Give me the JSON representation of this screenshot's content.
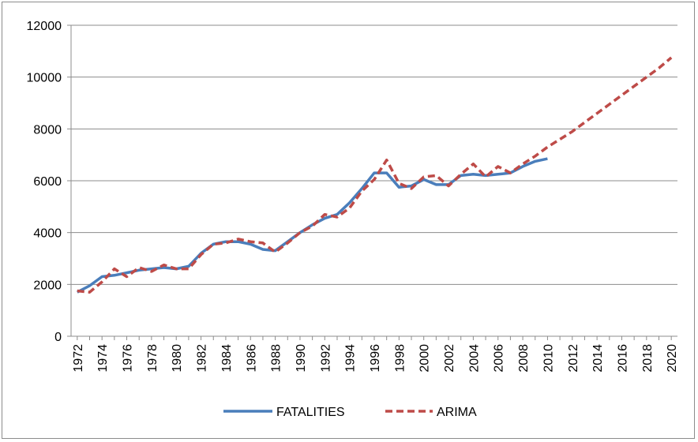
{
  "chart_data": {
    "type": "line",
    "title": "",
    "xlabel": "",
    "ylabel": "",
    "ylim": [
      0,
      12000
    ],
    "xlim": [
      1972,
      2020
    ],
    "yticks": [
      0,
      2000,
      4000,
      6000,
      8000,
      10000,
      12000
    ],
    "xticks": [
      1972,
      1974,
      1976,
      1978,
      1980,
      1982,
      1984,
      1986,
      1988,
      1990,
      1992,
      1994,
      1996,
      1998,
      2000,
      2002,
      2004,
      2006,
      2008,
      2010,
      2012,
      2014,
      2016,
      2018,
      2020
    ],
    "grid": "horizontal",
    "legend_position": "bottom",
    "series": [
      {
        "name": "FATALITIES",
        "color": "#4a7ebb",
        "style": "solid",
        "x": [
          1972,
          1973,
          1974,
          1975,
          1976,
          1977,
          1978,
          1979,
          1980,
          1981,
          1982,
          1983,
          1984,
          1985,
          1986,
          1987,
          1988,
          1989,
          1990,
          1991,
          1992,
          1993,
          1994,
          1995,
          1996,
          1997,
          1998,
          1999,
          2000,
          2001,
          2002,
          2003,
          2004,
          2005,
          2006,
          2007,
          2008,
          2009,
          2010
        ],
        "y": [
          1700,
          1950,
          2300,
          2350,
          2450,
          2550,
          2600,
          2650,
          2600,
          2700,
          3200,
          3550,
          3650,
          3650,
          3550,
          3350,
          3300,
          3650,
          4000,
          4300,
          4550,
          4700,
          5150,
          5700,
          6300,
          6300,
          5750,
          5800,
          6050,
          5850,
          5850,
          6200,
          6250,
          6200,
          6250,
          6300,
          6550,
          6750,
          6850
        ]
      },
      {
        "name": "ARIMA",
        "color": "#be4b48",
        "style": "dashed",
        "x": [
          1972,
          1973,
          1974,
          1975,
          1976,
          1977,
          1978,
          1979,
          1980,
          1981,
          1982,
          1983,
          1984,
          1985,
          1986,
          1987,
          1988,
          1989,
          1990,
          1991,
          1992,
          1993,
          1994,
          1995,
          1996,
          1997,
          1998,
          1999,
          2000,
          2001,
          2002,
          2003,
          2004,
          2005,
          2006,
          2007,
          2008,
          2009,
          2010,
          2011,
          2012,
          2013,
          2014,
          2015,
          2016,
          2017,
          2018,
          2019,
          2020
        ],
        "y": [
          1750,
          1700,
          2100,
          2600,
          2300,
          2650,
          2500,
          2750,
          2600,
          2600,
          3150,
          3550,
          3600,
          3750,
          3650,
          3600,
          3250,
          3600,
          4000,
          4250,
          4700,
          4600,
          4950,
          5600,
          6050,
          6800,
          5900,
          5700,
          6150,
          6200,
          5800,
          6250,
          6650,
          6150,
          6550,
          6300,
          6650,
          6950,
          7300,
          7600,
          7900,
          8250,
          8600,
          8950,
          9300,
          9650,
          10000,
          10350,
          10750
        ]
      }
    ]
  }
}
